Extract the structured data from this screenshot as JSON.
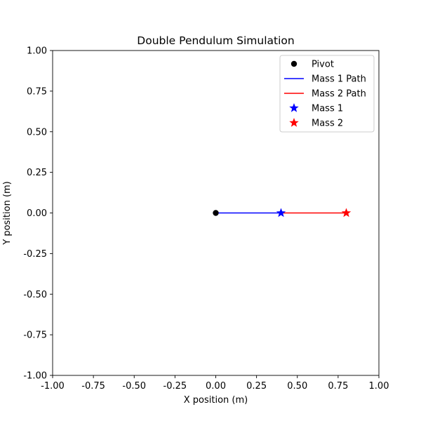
{
  "chart_data": {
    "type": "line",
    "title": "Double Pendulum Simulation",
    "xlabel": "X position (m)",
    "ylabel": "Y position (m)",
    "xlim": [
      -1.0,
      1.0
    ],
    "ylim": [
      -1.0,
      1.0
    ],
    "x_ticks": [
      "-1.00",
      "-0.75",
      "-0.50",
      "-0.25",
      "0.00",
      "0.25",
      "0.50",
      "0.75",
      "1.00"
    ],
    "y_ticks": [
      "-1.00",
      "-0.75",
      "-0.50",
      "-0.25",
      "0.00",
      "0.25",
      "0.50",
      "0.75",
      "1.00"
    ],
    "grid": false,
    "legend_position": "top-right",
    "series": [
      {
        "name": "Pivot",
        "kind": "marker",
        "marker": "circle",
        "color": "#000000",
        "x": [
          0.0
        ],
        "y": [
          0.0
        ]
      },
      {
        "name": "Mass 1 Path",
        "kind": "line",
        "color": "#0000ff",
        "x": [
          0.0,
          0.4
        ],
        "y": [
          0.0,
          0.0
        ]
      },
      {
        "name": "Mass 2 Path",
        "kind": "line",
        "color": "#ff0000",
        "x": [
          0.4,
          0.8
        ],
        "y": [
          0.0,
          0.0
        ]
      },
      {
        "name": "Mass 1",
        "kind": "marker",
        "marker": "star",
        "color": "#0000ff",
        "x": [
          0.4
        ],
        "y": [
          0.0
        ]
      },
      {
        "name": "Mass 2",
        "kind": "marker",
        "marker": "star",
        "color": "#ff0000",
        "x": [
          0.8
        ],
        "y": [
          0.0
        ]
      }
    ]
  }
}
